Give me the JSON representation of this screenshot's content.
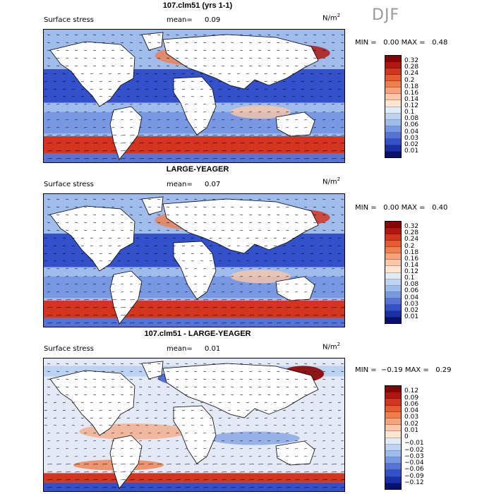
{
  "season": "DJF",
  "panels": [
    {
      "title": "107.clm51 (yrs 1-1)",
      "variable": "Surface stress",
      "mean_label": "mean=",
      "mean_value": "0.09",
      "units_base": "N/m",
      "units_exp": "2",
      "min_label": "MIN =",
      "min_value": "0.00",
      "max_label": "MAX =",
      "max_value": "0.48",
      "colorbar_labels": [
        "0.32",
        "0.28",
        "0.24",
        "0.2",
        "0.18",
        "0.16",
        "0.14",
        "0.12",
        "0.1",
        "0.08",
        "0.06",
        "0.04",
        "0.03",
        "0.02",
        "0.01"
      ],
      "colorbar_colors": [
        "#8b0000",
        "#b1170f",
        "#d4351e",
        "#e85a30",
        "#f07e4f",
        "#f6a27c",
        "#fac7a8",
        "#fde5d2",
        "#dfeaf7",
        "#bdd3f2",
        "#9cbcee",
        "#7898e3",
        "#5674d8",
        "#3451cc",
        "#1b2fa8",
        "#0a1070"
      ]
    },
    {
      "title": "LARGE-YEAGER",
      "variable": "Surface stress",
      "mean_label": "mean=",
      "mean_value": "0.07",
      "units_base": "N/m",
      "units_exp": "2",
      "min_label": "MIN =",
      "min_value": "0.00",
      "max_label": "MAX =",
      "max_value": "0.40",
      "colorbar_labels": [
        "0.32",
        "0.28",
        "0.24",
        "0.2",
        "0.18",
        "0.16",
        "0.14",
        "0.12",
        "0.1",
        "0.08",
        "0.06",
        "0.04",
        "0.03",
        "0.02",
        "0.01"
      ],
      "colorbar_colors": [
        "#8b0000",
        "#b1170f",
        "#d4351e",
        "#e85a30",
        "#f07e4f",
        "#f6a27c",
        "#fac7a8",
        "#fde5d2",
        "#dfeaf7",
        "#bdd3f2",
        "#9cbcee",
        "#7898e3",
        "#5674d8",
        "#3451cc",
        "#1b2fa8",
        "#0a1070"
      ]
    },
    {
      "title": "107.clm51 - LARGE-YEAGER",
      "variable": "Surface stress",
      "mean_label": "mean=",
      "mean_value": "0.01",
      "units_base": "N/m",
      "units_exp": "2",
      "min_label": "MIN =",
      "min_value": "−0.19",
      "max_label": "MAX =",
      "max_value": "0.29",
      "colorbar_labels": [
        "0.12",
        "0.09",
        "0.06",
        "0.04",
        "0.03",
        "0.02",
        "0.01",
        "0",
        "−0.01",
        "−0.02",
        "−0.03",
        "−0.04",
        "−0.06",
        "−0.09",
        "−0.12"
      ],
      "colorbar_colors": [
        "#8b0000",
        "#b1170f",
        "#d4351e",
        "#e85a30",
        "#f07e4f",
        "#f6a27c",
        "#fac7a8",
        "#fde5d2",
        "#dfeaf7",
        "#bdd3f2",
        "#9cbcee",
        "#7898e3",
        "#5674d8",
        "#3451cc",
        "#1b2fa8",
        "#0a1070"
      ]
    }
  ]
}
